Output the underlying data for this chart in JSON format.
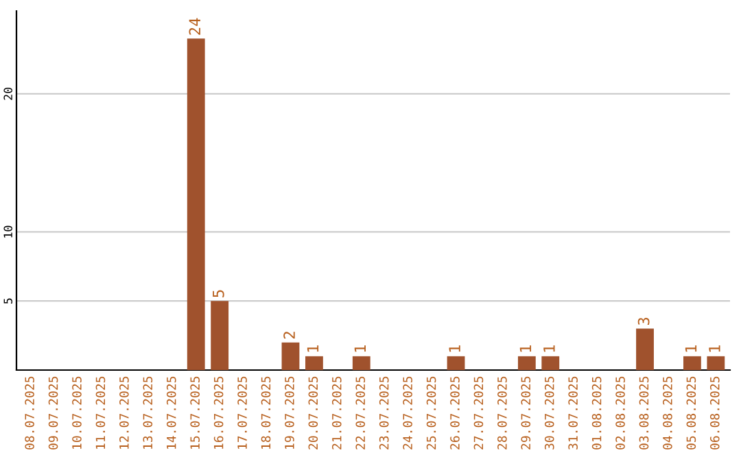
{
  "chart_data": {
    "type": "bar",
    "categories": [
      "08.07.2025",
      "09.07.2025",
      "10.07.2025",
      "11.07.2025",
      "12.07.2025",
      "13.07.2025",
      "14.07.2025",
      "15.07.2025",
      "16.07.2025",
      "17.07.2025",
      "18.07.2025",
      "19.07.2025",
      "20.07.2025",
      "21.07.2025",
      "22.07.2025",
      "23.07.2025",
      "24.07.2025",
      "25.07.2025",
      "26.07.2025",
      "27.07.2025",
      "28.07.2025",
      "29.07.2025",
      "30.07.2025",
      "31.07.2025",
      "01.08.2025",
      "02.08.2025",
      "03.08.2025",
      "04.08.2025",
      "05.08.2025",
      "06.08.2025"
    ],
    "values": [
      0,
      0,
      0,
      0,
      0,
      0,
      0,
      24,
      5,
      0,
      0,
      2,
      1,
      0,
      1,
      0,
      0,
      0,
      1,
      0,
      0,
      1,
      1,
      0,
      0,
      0,
      3,
      0,
      1,
      1
    ],
    "value_labels": [
      null,
      null,
      null,
      null,
      null,
      null,
      null,
      "24",
      "5",
      null,
      null,
      "2",
      "1",
      null,
      "1",
      null,
      null,
      null,
      "1",
      null,
      null,
      "1",
      "1",
      null,
      null,
      null,
      "3",
      null,
      "1",
      "1"
    ],
    "color": "#a0522d",
    "ylim": [
      0,
      26
    ],
    "yticks": [
      5,
      10,
      20
    ],
    "grid": "y"
  }
}
